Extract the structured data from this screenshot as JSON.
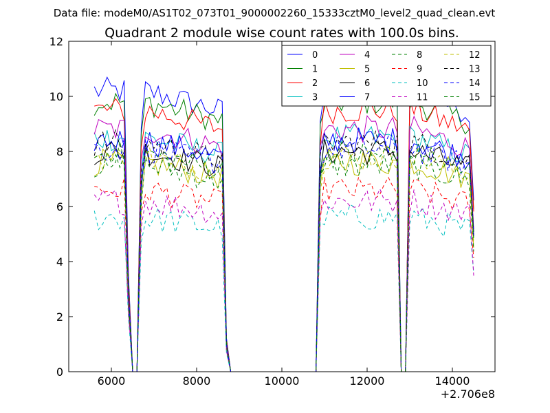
{
  "figure": {
    "suptitle": "Data file: modeM0/AS1T02_073T01_9000002260_15333cztM0_level2_quad_clean.evt"
  },
  "chart_data": {
    "type": "line",
    "title": "Quadrant 2 module wise count rates with 100.0s bins.",
    "xlabel": "",
    "ylabel": "",
    "x_offset_label": "+2.706e8",
    "xlim": [
      5000,
      15000
    ],
    "ylim": [
      0,
      12
    ],
    "xticks": [
      6000,
      8000,
      10000,
      12000,
      14000
    ],
    "yticks": [
      0,
      2,
      4,
      6,
      8,
      10,
      12
    ],
    "legend": {
      "placement": "top-right",
      "ncol": 4
    },
    "x": [
      5600,
      5700,
      5800,
      5900,
      6000,
      6100,
      6200,
      6300,
      6400,
      6500,
      6600,
      6700,
      6800,
      6900,
      7000,
      7100,
      7200,
      7300,
      7400,
      7500,
      7600,
      7700,
      7800,
      7900,
      8000,
      8100,
      8200,
      8300,
      8400,
      8500,
      8600,
      8700,
      8800,
      8900,
      9000,
      10000,
      10800,
      10900,
      11000,
      11100,
      11200,
      11300,
      11400,
      11500,
      11600,
      11700,
      11800,
      11900,
      12000,
      12100,
      12200,
      12300,
      12400,
      12500,
      12600,
      12700,
      12800,
      12900,
      13000,
      13100,
      13200,
      13300,
      13400,
      13500,
      13600,
      13700,
      13800,
      13900,
      14000,
      14100,
      14200,
      14300,
      14400,
      14500
    ],
    "series": [
      {
        "name": "0",
        "color": "#0000ff",
        "dash": "solid",
        "level": 10.2
      },
      {
        "name": "1",
        "color": "#008000",
        "dash": "solid",
        "level": 9.8
      },
      {
        "name": "2",
        "color": "#ff0000",
        "dash": "solid",
        "level": 9.5
      },
      {
        "name": "3",
        "color": "#00bfbf",
        "dash": "solid",
        "level": 8.5
      },
      {
        "name": "4",
        "color": "#bf00bf",
        "dash": "solid",
        "level": 8.8
      },
      {
        "name": "5",
        "color": "#bfbf00",
        "dash": "solid",
        "level": 7.6
      },
      {
        "name": "6",
        "color": "#000000",
        "dash": "solid",
        "level": 8.0
      },
      {
        "name": "7",
        "color": "#0000ff",
        "dash": "solid",
        "level": 8.4
      },
      {
        "name": "8",
        "color": "#008000",
        "dash": "dashed",
        "level": 7.5
      },
      {
        "name": "9",
        "color": "#ff0000",
        "dash": "dashed",
        "level": 6.6
      },
      {
        "name": "10",
        "color": "#00bfbf",
        "dash": "dashed",
        "level": 5.6
      },
      {
        "name": "11",
        "color": "#bf00bf",
        "dash": "dashed",
        "level": 6.2
      },
      {
        "name": "12",
        "color": "#bfbf00",
        "dash": "dashed",
        "level": 7.8
      },
      {
        "name": "13",
        "color": "#000000",
        "dash": "dashed",
        "level": 8.3
      },
      {
        "name": "14",
        "color": "#0000ff",
        "dash": "dashed",
        "level": 8.1
      },
      {
        "name": "15",
        "color": "#008000",
        "dash": "dashed",
        "level": 7.9
      }
    ]
  }
}
